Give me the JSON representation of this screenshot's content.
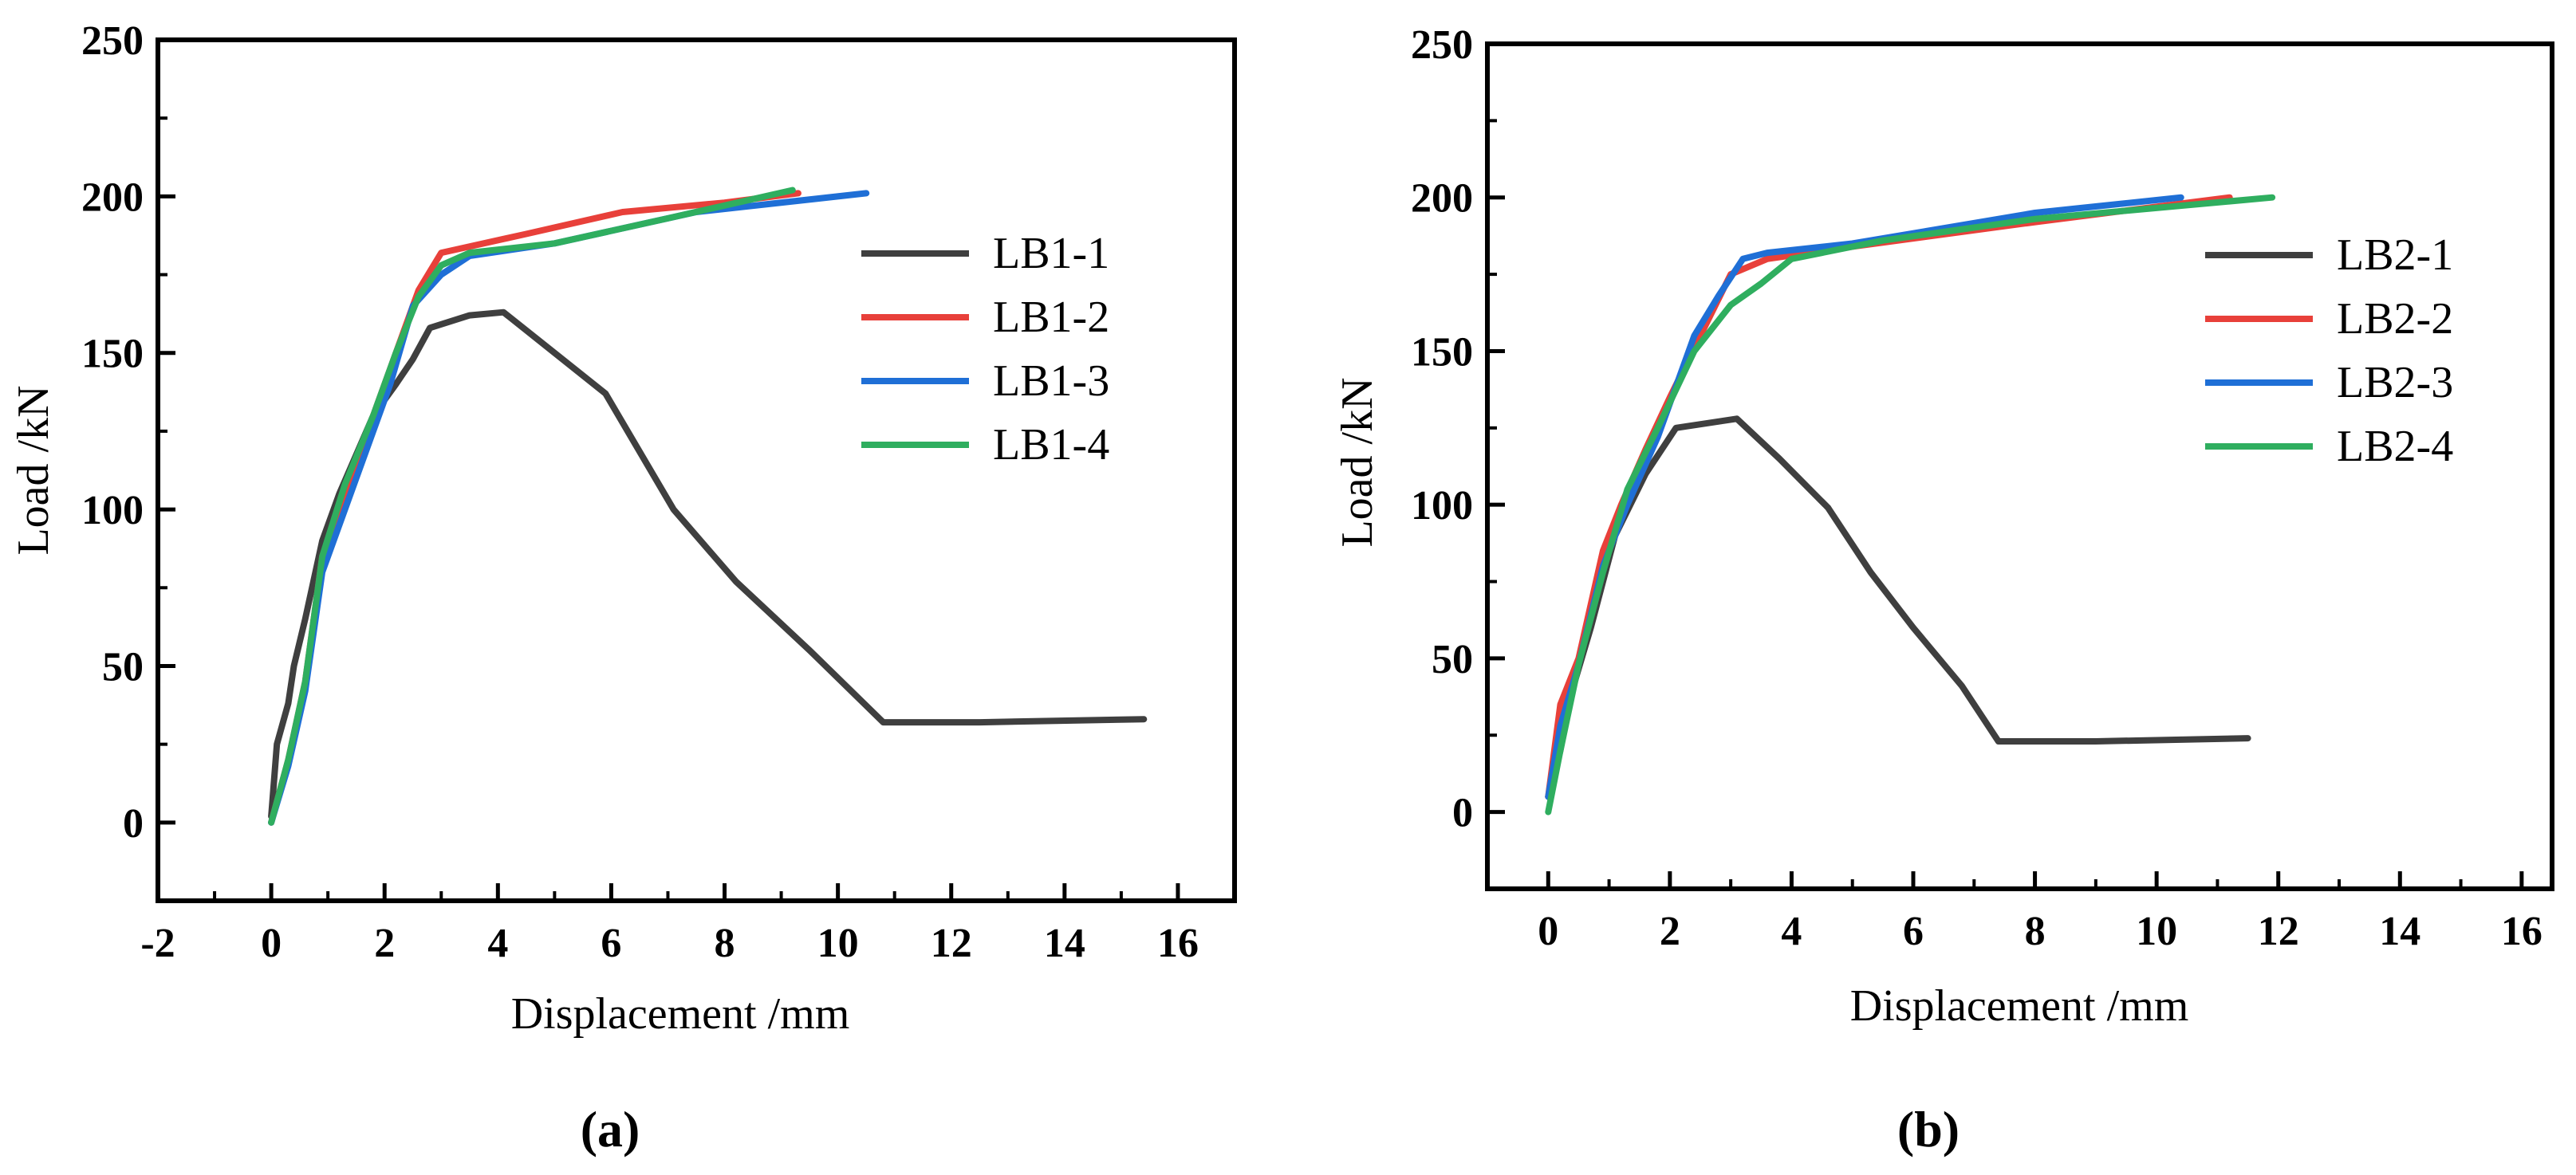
{
  "captions": [
    "(a)",
    "(b)"
  ],
  "colors": {
    "LB-1": "#3f3f3f",
    "LB-2": "#e8403a",
    "LB-3": "#1f6fd6",
    "LB-4": "#2fae5f",
    "axis": "#000000"
  },
  "chart_data": [
    {
      "type": "line",
      "panel": "(a)",
      "xlabel": "Displacement /mm",
      "ylabel": "Load /kN",
      "xlim": [
        -2,
        17
      ],
      "ylim": [
        -25,
        250
      ],
      "xticks": [
        -2,
        0,
        2,
        4,
        6,
        8,
        10,
        12,
        14,
        16
      ],
      "yticks": [
        0,
        50,
        100,
        150,
        200,
        250
      ],
      "legend_position": "right",
      "series": [
        {
          "name": "LB1-1",
          "color": "#3f3f3f",
          "x": [
            0,
            0.1,
            0.3,
            0.4,
            0.6,
            0.9,
            1.2,
            1.8,
            2.2,
            2.5,
            2.8,
            3.5,
            4.1,
            5.0,
            5.9,
            7.1,
            8.2,
            9.5,
            10.8,
            12.5,
            15.4
          ],
          "y": [
            2,
            25,
            38,
            50,
            65,
            90,
            105,
            130,
            140,
            148,
            158,
            162,
            163,
            150,
            137,
            100,
            77,
            55,
            32,
            32,
            33
          ]
        },
        {
          "name": "LB1-2",
          "color": "#e8403a",
          "x": [
            0,
            0.3,
            0.6,
            0.9,
            1.3,
            1.8,
            2.2,
            2.6,
            3.0,
            4.5,
            6.2,
            8.0,
            9.3
          ],
          "y": [
            0,
            20,
            45,
            85,
            105,
            130,
            150,
            170,
            182,
            188,
            195,
            198,
            201
          ]
        },
        {
          "name": "LB1-3",
          "color": "#1f6fd6",
          "x": [
            0,
            0.3,
            0.6,
            0.9,
            1.3,
            1.7,
            2.1,
            2.5,
            3.0,
            3.5,
            5.0,
            7.5,
            10.5
          ],
          "y": [
            0,
            18,
            42,
            80,
            100,
            120,
            140,
            165,
            175,
            181,
            185,
            195,
            201
          ]
        },
        {
          "name": "LB1-4",
          "color": "#2fae5f",
          "x": [
            0,
            0.3,
            0.6,
            0.9,
            1.3,
            1.8,
            2.2,
            2.6,
            3.0,
            3.5,
            5.0,
            7.0,
            9.2
          ],
          "y": [
            0,
            20,
            45,
            85,
            108,
            130,
            150,
            168,
            178,
            182,
            185,
            193,
            202
          ]
        }
      ]
    },
    {
      "type": "line",
      "panel": "(b)",
      "xlabel": "Displacement /mm",
      "ylabel": "Load /kN",
      "xlim": [
        -1,
        16.5
      ],
      "ylim": [
        -25,
        250
      ],
      "xticks": [
        0,
        2,
        4,
        6,
        8,
        10,
        12,
        14,
        16
      ],
      "yticks": [
        0,
        50,
        100,
        150,
        200,
        250
      ],
      "legend_position": "right",
      "series": [
        {
          "name": "LB2-1",
          "color": "#3f3f3f",
          "x": [
            0,
            0.2,
            0.4,
            0.7,
            1.1,
            1.6,
            2.1,
            3.1,
            3.8,
            4.6,
            5.3,
            6.0,
            6.8,
            7.4,
            9.0,
            11.5
          ],
          "y": [
            5,
            20,
            40,
            60,
            90,
            110,
            125,
            128,
            115,
            99,
            78,
            60,
            41,
            23,
            23,
            24
          ]
        },
        {
          "name": "LB2-2",
          "color": "#e8403a",
          "x": [
            0,
            0.2,
            0.5,
            0.9,
            1.2,
            1.6,
            2.0,
            2.5,
            3.0,
            3.6,
            5.0,
            8.0,
            11.2
          ],
          "y": [
            5,
            35,
            50,
            85,
            100,
            118,
            135,
            155,
            175,
            180,
            184,
            192,
            200
          ]
        },
        {
          "name": "LB2-3",
          "color": "#1f6fd6",
          "x": [
            0,
            0.2,
            0.5,
            0.9,
            1.3,
            1.8,
            2.4,
            2.8,
            3.2,
            3.6,
            5.0,
            8.0,
            10.4
          ],
          "y": [
            5,
            28,
            48,
            80,
            100,
            122,
            155,
            168,
            180,
            182,
            185,
            195,
            200
          ]
        },
        {
          "name": "LB2-4",
          "color": "#2fae5f",
          "x": [
            0,
            0.2,
            0.5,
            0.9,
            1.3,
            1.8,
            2.4,
            3.0,
            3.5,
            4.0,
            5.5,
            8.0,
            11.9
          ],
          "y": [
            0,
            20,
            48,
            78,
            105,
            125,
            150,
            165,
            172,
            180,
            186,
            193,
            200
          ]
        }
      ]
    }
  ]
}
